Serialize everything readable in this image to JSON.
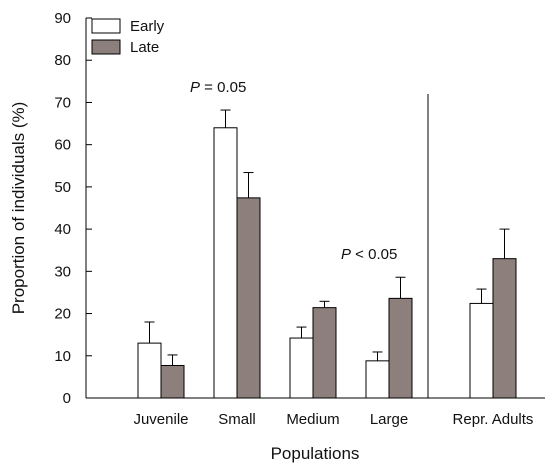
{
  "chart_data": {
    "type": "bar",
    "title": "",
    "xlabel": "Populations",
    "ylabel": "Proportion of individuals (%)",
    "ylim": [
      0,
      90
    ],
    "yticks": [
      0,
      10,
      20,
      30,
      40,
      50,
      60,
      70,
      80,
      90
    ],
    "categories": [
      "Juvenile",
      "Small",
      "Medium",
      "Large",
      "Repr. Adults"
    ],
    "series": [
      {
        "name": "Early",
        "color": "#ffffff",
        "values": [
          13,
          64,
          14.2,
          8.8,
          22.4
        ],
        "errors": [
          5,
          4.2,
          2.6,
          2.1,
          3.4
        ]
      },
      {
        "name": "Late",
        "color": "#8c7f7c",
        "values": [
          7.7,
          47.4,
          21.4,
          23.6,
          33
        ],
        "errors": [
          2.5,
          6,
          1.5,
          5,
          7
        ]
      }
    ],
    "legend": {
      "position": "top-left"
    },
    "grid": false,
    "annotations": [
      {
        "label": "P",
        "rest": " = 0.05",
        "category": "Small"
      },
      {
        "label": "P",
        "rest": " < 0.05",
        "category": "Large"
      }
    ]
  }
}
